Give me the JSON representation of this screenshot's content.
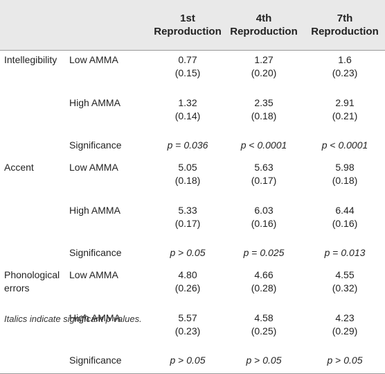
{
  "header": {
    "cols": [
      "1st\nReproduction",
      "4th\nReproduction",
      "7th\nReproduction"
    ]
  },
  "groups": [
    {
      "label": "Intellegibility",
      "rows": [
        {
          "label": "Low AMMA",
          "v": [
            [
              "0.77",
              "(0.15)"
            ],
            [
              "1.27",
              "(0.20)"
            ],
            [
              "1.6",
              "(0.23)"
            ]
          ]
        },
        {
          "label": "High AMMA",
          "v": [
            [
              "1.32",
              "(0.14)"
            ],
            [
              "2.35",
              "(0.18)"
            ],
            [
              "2.91",
              "(0.21)"
            ]
          ]
        }
      ],
      "sig": {
        "label": "Significance",
        "v": [
          "p = 0.036",
          "p < 0.0001",
          "p < 0.0001"
        ]
      }
    },
    {
      "label": "Accent",
      "rows": [
        {
          "label": "Low AMMA",
          "v": [
            [
              "5.05",
              "(0.18)"
            ],
            [
              "5.63",
              "(0.17)"
            ],
            [
              "5.98",
              "(0.18)"
            ]
          ]
        },
        {
          "label": "High AMMA",
          "v": [
            [
              "5.33",
              "(0.17)"
            ],
            [
              "6.03",
              "(0.16)"
            ],
            [
              "6.44",
              "(0.16)"
            ]
          ]
        }
      ],
      "sig": {
        "label": "Significance",
        "v": [
          "p > 0.05",
          "p = 0.025",
          "p = 0.013"
        ]
      }
    },
    {
      "label": "Phonological errors",
      "rows": [
        {
          "label": "Low AMMA",
          "v": [
            [
              "4.80",
              "(0.26)"
            ],
            [
              "4.66",
              "(0.28)"
            ],
            [
              "4.55",
              "(0.32)"
            ]
          ]
        },
        {
          "label": "High AMMA",
          "v": [
            [
              "5.57",
              "(0.23)"
            ],
            [
              "4.58",
              "(0.25)"
            ],
            [
              "4.23",
              "(0.29)"
            ]
          ]
        }
      ],
      "sig": {
        "label": "Significance",
        "v": [
          "p > 0.05",
          "p > 0.05",
          "p > 0.05"
        ]
      }
    }
  ],
  "footnote": "Italics indicate significant p values."
}
